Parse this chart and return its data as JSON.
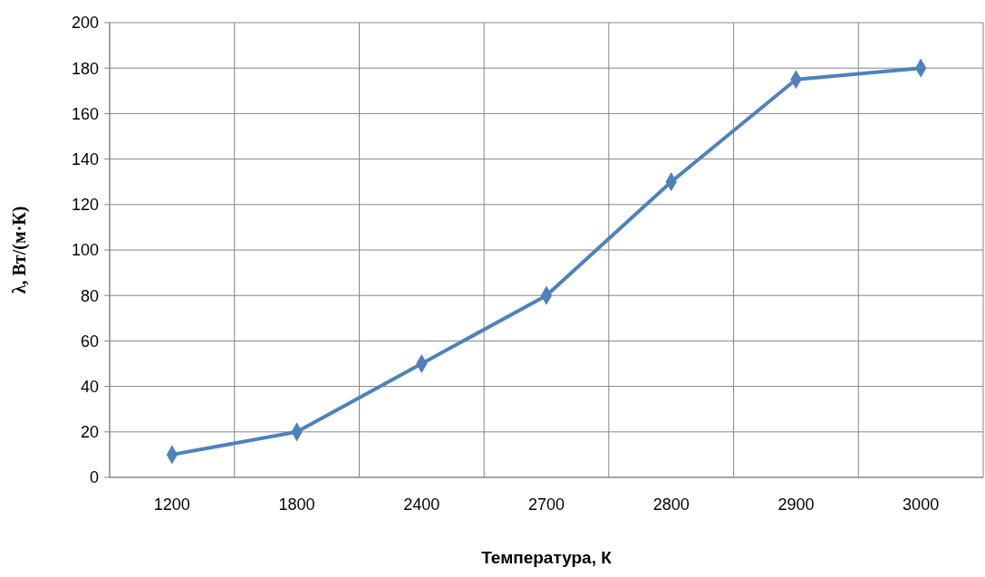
{
  "chart_data": {
    "type": "line",
    "xlabel": "Температура, К",
    "ylabel": "λ, Вт/(м·К)",
    "categories": [
      "1200",
      "1800",
      "2400",
      "2700",
      "2800",
      "2900",
      "3000"
    ],
    "series": [
      {
        "color": "#4f81bd",
        "values": [
          10,
          20,
          50,
          80,
          130,
          175,
          180
        ]
      }
    ],
    "ylim": [
      0,
      200
    ],
    "yticks": [
      0,
      20,
      40,
      60,
      80,
      100,
      120,
      140,
      160,
      180,
      200
    ],
    "grid": true,
    "marker": "diamond"
  }
}
